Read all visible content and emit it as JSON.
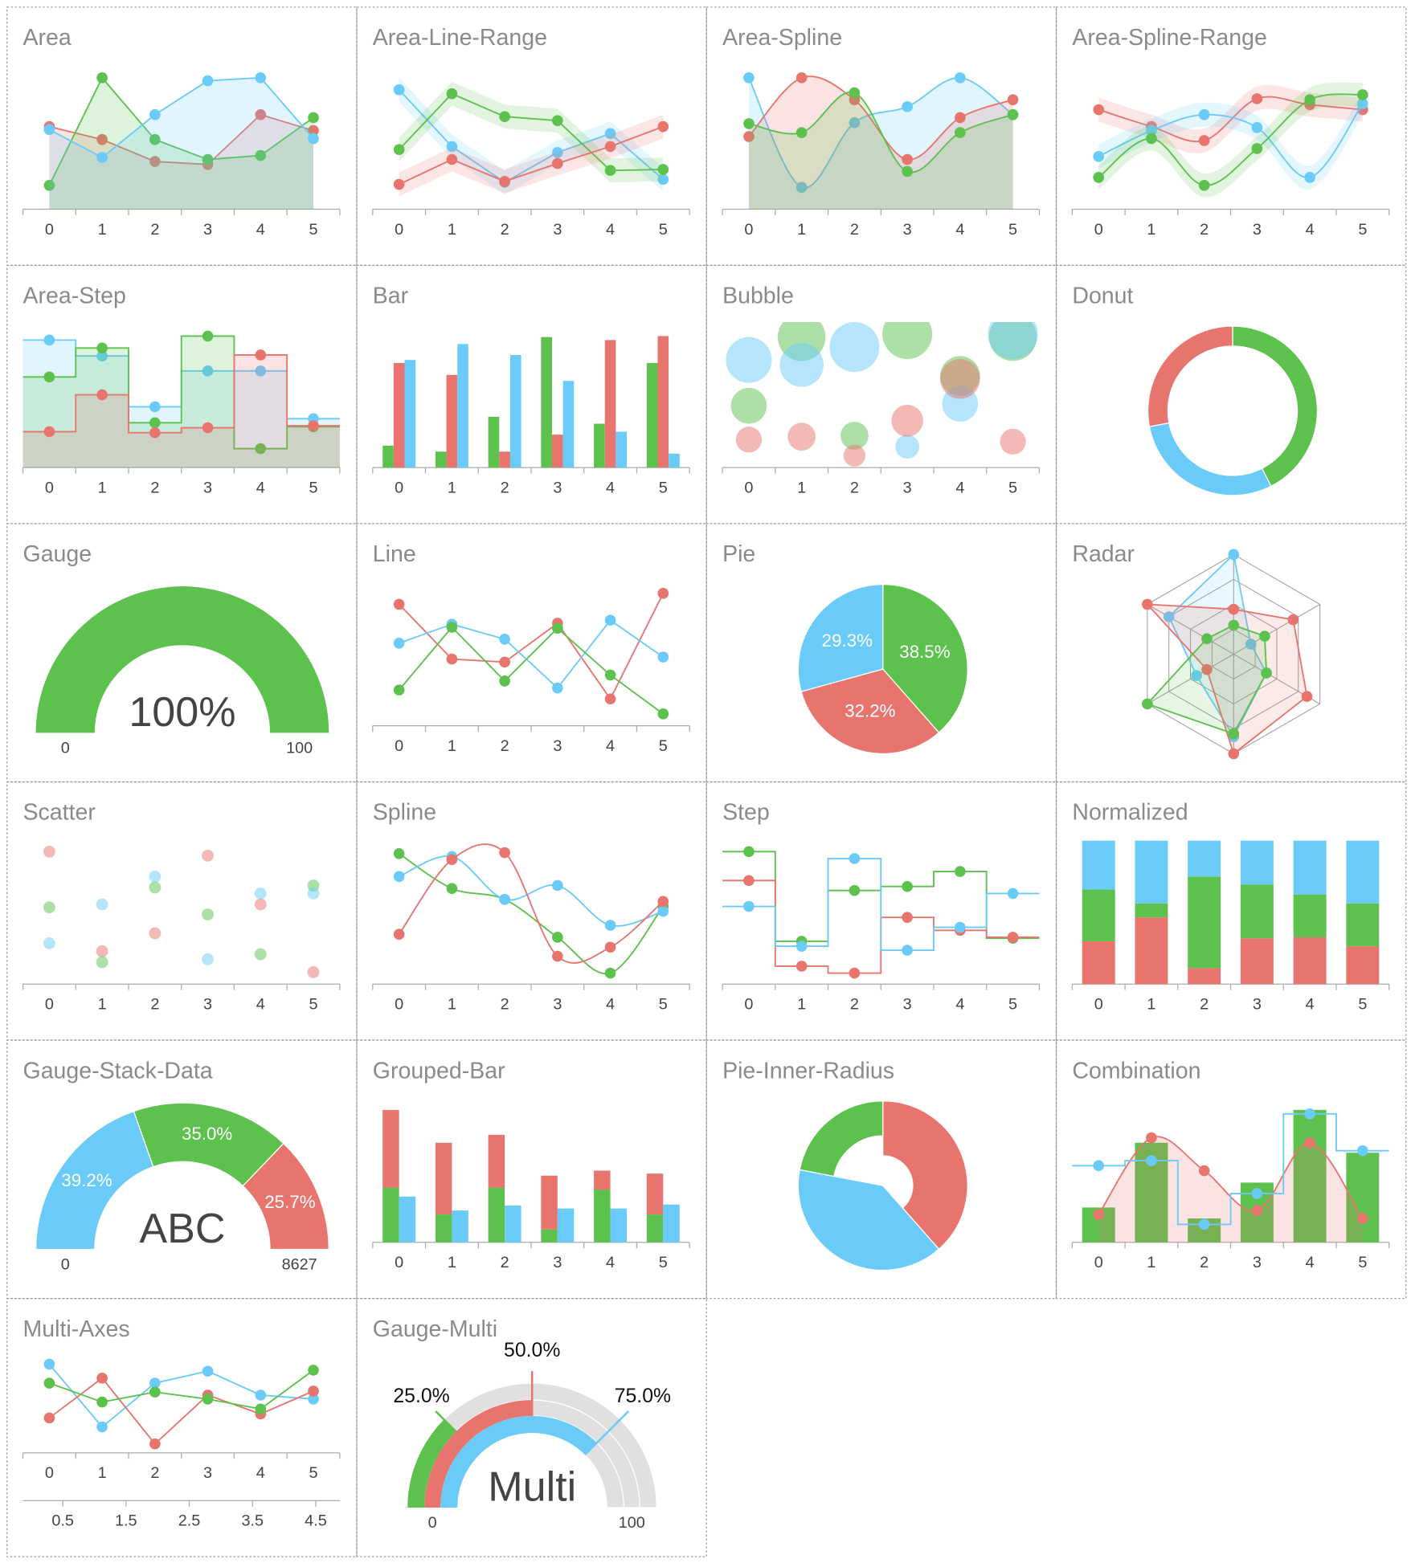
{
  "chart_data": [
    {
      "type": "area",
      "curve": "linear",
      "title": "Area",
      "categories": [
        "0",
        "1",
        "2",
        "3",
        "4",
        "5"
      ],
      "series": [
        {
          "color": "#e8746e",
          "values": [
            83,
            70,
            48,
            45,
            95,
            79
          ]
        },
        {
          "color": "#5cc14d",
          "values": [
            24,
            132,
            70,
            50,
            54,
            92
          ]
        },
        {
          "color": "#6acbf9",
          "values": [
            80,
            52,
            95,
            129,
            132,
            71
          ]
        }
      ]
    },
    {
      "type": "range",
      "curve": "linear",
      "title": "Area-Line-Range",
      "categories": [
        "0",
        "1",
        "2",
        "3",
        "4",
        "5"
      ],
      "series": [
        {
          "color": "#6acbf9",
          "values": [
            120,
            63,
            27,
            57,
            76,
            30
          ],
          "low": [
            108,
            51,
            15,
            45,
            64,
            18
          ],
          "high": [
            132,
            75,
            39,
            69,
            88,
            42
          ]
        },
        {
          "color": "#5cc14d",
          "values": [
            60,
            116,
            93,
            89,
            39,
            40
          ],
          "low": [
            48,
            104,
            81,
            77,
            27,
            28
          ],
          "high": [
            72,
            128,
            105,
            101,
            51,
            52
          ]
        },
        {
          "color": "#e8746e",
          "values": [
            25,
            50,
            28,
            46,
            63,
            83
          ],
          "low": [
            13,
            38,
            16,
            34,
            51,
            71
          ],
          "high": [
            37,
            62,
            40,
            58,
            75,
            95
          ]
        }
      ]
    },
    {
      "type": "area",
      "curve": "spline",
      "title": "Area-Spline",
      "categories": [
        "0",
        "1",
        "2",
        "3",
        "4",
        "5"
      ],
      "series": [
        {
          "color": "#6acbf9",
          "values": [
            132,
            22,
            87,
            103,
            132,
            95
          ]
        },
        {
          "color": "#e8746e",
          "values": [
            73,
            132,
            110,
            50,
            92,
            110
          ]
        },
        {
          "color": "#5cc14d",
          "values": [
            86,
            77,
            117,
            38,
            77,
            95
          ]
        }
      ]
    },
    {
      "type": "range",
      "curve": "spline",
      "title": "Area-Spline-Range",
      "categories": [
        "0",
        "1",
        "2",
        "3",
        "4",
        "5"
      ],
      "series": [
        {
          "color": "#e8746e",
          "values": [
            100,
            83,
            69,
            111,
            105,
            100
          ],
          "low": [
            88,
            71,
            57,
            99,
            93,
            88
          ],
          "high": [
            112,
            95,
            81,
            123,
            117,
            112
          ]
        },
        {
          "color": "#6acbf9",
          "values": [
            53,
            79,
            95,
            82,
            32,
            106
          ],
          "low": [
            41,
            67,
            83,
            70,
            20,
            94
          ],
          "high": [
            65,
            91,
            107,
            94,
            44,
            118
          ]
        },
        {
          "color": "#5cc14d",
          "values": [
            32,
            71,
            24,
            61,
            110,
            115
          ],
          "low": [
            20,
            59,
            12,
            49,
            98,
            103
          ],
          "high": [
            44,
            83,
            36,
            73,
            122,
            127
          ]
        }
      ]
    },
    {
      "type": "area",
      "curve": "step",
      "title": "Area-Step",
      "categories": [
        "0",
        "1",
        "2",
        "3",
        "4",
        "5"
      ],
      "series": [
        {
          "color": "#6acbf9",
          "values": [
            128,
            112,
            61,
            97,
            97,
            49
          ]
        },
        {
          "color": "#5cc14d",
          "values": [
            91,
            120,
            45,
            132,
            19,
            41
          ]
        },
        {
          "color": "#e8746e",
          "values": [
            36,
            73,
            35,
            40,
            113,
            42
          ]
        }
      ]
    },
    {
      "type": "bar",
      "title": "Bar",
      "categories": [
        "0",
        "1",
        "2",
        "3",
        "4",
        "5"
      ],
      "series": [
        {
          "color": "#5cc14d",
          "values": [
            22,
            16,
            51,
            131,
            44,
            105
          ]
        },
        {
          "color": "#e8746e",
          "values": [
            105,
            93,
            16,
            33,
            128,
            132
          ]
        },
        {
          "color": "#6acbf9",
          "values": [
            108,
            124,
            113,
            87,
            36,
            14
          ]
        }
      ]
    },
    {
      "type": "bubble",
      "title": "Bubble",
      "categories": [
        "0",
        "1",
        "2",
        "3",
        "4",
        "5"
      ],
      "series": [
        {
          "color": "#5cc14d",
          "values": [
            62,
            131,
            32,
            134,
            92,
            131
          ],
          "sizes": [
            18,
            24,
            14,
            25,
            20,
            24
          ]
        },
        {
          "color": "#6acbf9",
          "values": [
            108,
            103,
            121,
            21,
            64,
            134
          ],
          "sizes": [
            23,
            22,
            25,
            12,
            18,
            25
          ]
        },
        {
          "color": "#e8746e",
          "values": [
            28,
            31,
            12,
            47,
            89,
            26
          ],
          "sizes": [
            13,
            14,
            11,
            16,
            20,
            13
          ]
        }
      ]
    },
    {
      "type": "donut",
      "title": "Donut",
      "values": [
        42.5,
        29.5,
        28
      ],
      "colors": [
        "#5cc14d",
        "#6acbf9",
        "#e8746e"
      ]
    },
    {
      "type": "gauge",
      "title": "Gauge",
      "values": [
        100
      ],
      "value_labels": [
        "100%"
      ],
      "colors": [
        "#5cc14d"
      ],
      "min": 0,
      "max": 100
    },
    {
      "type": "line",
      "curve": "linear",
      "title": "Line",
      "categories": [
        "0",
        "1",
        "2",
        "3",
        "4",
        "5"
      ],
      "series": [
        {
          "color": "#e8746e",
          "values": [
            122,
            67,
            64,
            103,
            27,
            133
          ]
        },
        {
          "color": "#6acbf9",
          "values": [
            83,
            102,
            87,
            38,
            106,
            69
          ]
        },
        {
          "color": "#5cc14d",
          "values": [
            36,
            99,
            45,
            98,
            51,
            12
          ]
        }
      ]
    },
    {
      "type": "pie",
      "title": "Pie",
      "values": [
        38.5,
        32.2,
        29.3
      ],
      "value_labels": [
        "38.5%",
        "32.2%",
        "29.3%"
      ],
      "colors": [
        "#5cc14d",
        "#e8746e",
        "#6acbf9"
      ]
    },
    {
      "type": "radar",
      "title": "Radar",
      "series": [
        {
          "color": "#6acbf9",
          "values": [
            100,
            20,
            38,
            83,
            43,
            75
          ]
        },
        {
          "color": "#e8746e",
          "values": [
            45,
            69,
            85,
            100,
            31,
            100
          ]
        },
        {
          "color": "#5cc14d",
          "values": [
            29,
            36,
            38,
            80,
            100,
            31
          ]
        }
      ]
    },
    {
      "type": "scatter",
      "title": "Scatter",
      "categories": [
        "0",
        "1",
        "2",
        "3",
        "4",
        "5"
      ],
      "series": [
        {
          "color": "#e8746e",
          "values": [
            133,
            33,
            51,
            129,
            80,
            12
          ]
        },
        {
          "color": "#5cc14d",
          "values": [
            77,
            22,
            97,
            70,
            30,
            99
          ]
        },
        {
          "color": "#6acbf9",
          "values": [
            41,
            80,
            108,
            25,
            91,
            91
          ]
        }
      ]
    },
    {
      "type": "line",
      "curve": "spline",
      "title": "Spline",
      "categories": [
        "0",
        "1",
        "2",
        "3",
        "4",
        "5"
      ],
      "series": [
        {
          "color": "#5cc14d",
          "values": [
            131,
            96,
            85,
            47,
            11,
            78
          ]
        },
        {
          "color": "#6acbf9",
          "values": [
            108,
            128,
            85,
            99,
            59,
            73
          ]
        },
        {
          "color": "#e8746e",
          "values": [
            50,
            125,
            132,
            28,
            37,
            83
          ]
        }
      ]
    },
    {
      "type": "line",
      "curve": "step",
      "title": "Step",
      "categories": [
        "0",
        "1",
        "2",
        "3",
        "4",
        "5"
      ],
      "series": [
        {
          "color": "#5cc14d",
          "values": [
            133,
            43,
            94,
            98,
            113,
            46
          ]
        },
        {
          "color": "#e8746e",
          "values": [
            104,
            18,
            11,
            67,
            54,
            47
          ]
        },
        {
          "color": "#6acbf9",
          "values": [
            78,
            38,
            126,
            34,
            57,
            91
          ]
        }
      ]
    },
    {
      "type": "bar",
      "normalized": true,
      "title": "Normalized",
      "categories": [
        "0",
        "1",
        "2",
        "3",
        "4",
        "5"
      ],
      "series": [
        {
          "color": "#e8746e",
          "stack": true,
          "values": [
            43,
            67,
            16,
            46,
            47,
            38
          ]
        },
        {
          "color": "#5cc14d",
          "stack": true,
          "values": [
            52,
            14,
            92,
            54,
            43,
            43
          ]
        },
        {
          "color": "#6acbf9",
          "stack": true,
          "values": [
            49,
            63,
            36,
            44,
            54,
            63
          ]
        }
      ]
    },
    {
      "type": "gauge",
      "stacked": true,
      "title": "Gauge-Stack-Data",
      "values": [
        39.2,
        35.0,
        25.7
      ],
      "value_labels": [
        "39.2%",
        "35.0%",
        "25.7%"
      ],
      "colors": [
        "#6acbf9",
        "#5cc14d",
        "#e8746e"
      ],
      "min": 0,
      "max": 8627,
      "label": "ABC"
    },
    {
      "type": "bar",
      "title": "Grouped-Bar",
      "categories": [
        "0",
        "1",
        "2",
        "3",
        "4",
        "5"
      ],
      "series": [
        {
          "color": "#5cc14d",
          "stack": true,
          "values": [
            55,
            28,
            55,
            13,
            53,
            28
          ]
        },
        {
          "color": "#e8746e",
          "stack": true,
          "values": [
            78,
            72,
            53,
            54,
            19,
            41
          ]
        },
        {
          "color": "#6acbf9",
          "values": [
            46,
            32,
            37,
            34,
            34,
            38
          ]
        }
      ]
    },
    {
      "type": "pie",
      "inner_radius": true,
      "title": "Pie-Inner-Radius",
      "values": [
        38.5,
        39.5,
        22
      ],
      "colors": [
        "#e8746e",
        "#6acbf9",
        "#5cc14d"
      ]
    },
    {
      "type": "combination",
      "title": "Combination",
      "categories": [
        "0",
        "1",
        "2",
        "3",
        "4",
        "5"
      ],
      "series": [
        {
          "color": "#5cc14d",
          "kind": "bar",
          "values": [
            35,
            100,
            24,
            60,
            133,
            90
          ]
        },
        {
          "color": "#e8746e",
          "kind": "area",
          "curve": "spline",
          "values": [
            28,
            105,
            72,
            32,
            100,
            24
          ]
        },
        {
          "color": "#6acbf9",
          "kind": "line",
          "curve": "step",
          "values": [
            77,
            82,
            18,
            49,
            129,
            92
          ]
        }
      ]
    },
    {
      "type": "line",
      "curve": "linear",
      "title": "Multi-Axes",
      "categories": [
        "0",
        "1",
        "2",
        "3",
        "4",
        "5"
      ],
      "x2lim": [
        -0.13,
        4.88
      ],
      "x2ticks": [
        0.5,
        1.5,
        2.5,
        3.5,
        4.5
      ],
      "series": [
        {
          "color": "#6acbf9",
          "values": [
            89,
            26,
            70,
            82,
            58,
            54
          ]
        },
        {
          "color": "#e8746e",
          "values": [
            35,
            75,
            9,
            58,
            39,
            62
          ]
        },
        {
          "color": "#5cc14d",
          "values": [
            70,
            51,
            61,
            54,
            44,
            83
          ]
        }
      ]
    },
    {
      "type": "gauge",
      "multi": true,
      "title": "Gauge-Multi",
      "values": [
        25,
        50,
        75
      ],
      "value_labels": [
        "25.0%",
        "50.0%",
        "75.0%"
      ],
      "colors": [
        "#5cc14d",
        "#e8746e",
        "#6acbf9"
      ],
      "min": 0,
      "max": 100,
      "label": "Multi"
    }
  ]
}
